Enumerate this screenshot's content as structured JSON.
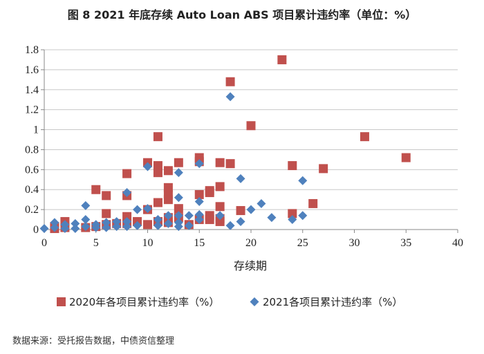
{
  "source_note": "数据来源：受托报告数据，中债资信整理",
  "colors": {
    "series_2020": "#c0504d",
    "series_2021": "#4f81bd",
    "grid": "#c8c8c8",
    "axis": "#888888"
  },
  "chart_data": {
    "type": "scatter",
    "title": "图 8  2021 年底存续 Auto Loan ABS 项目累计违约率（单位：%）",
    "xlabel": "存续期",
    "ylabel": "",
    "xlim": [
      0,
      40
    ],
    "ylim": [
      0,
      1.8
    ],
    "xticks": [
      "0",
      "5",
      "10",
      "15",
      "20",
      "25",
      "30",
      "35",
      "40"
    ],
    "yticks": [
      "0",
      "0.2",
      "0.4",
      "0.6",
      "0.8",
      "1",
      "1.2",
      "1.4",
      "1.6",
      "1.8"
    ],
    "grid": "horizontal",
    "legend_position": "bottom",
    "series": [
      {
        "name": "2020年各项目累计违约率（%）",
        "marker": "square",
        "points": [
          [
            1,
            0.01
          ],
          [
            1,
            0.03
          ],
          [
            2,
            0.08
          ],
          [
            2,
            0.02
          ],
          [
            4,
            0.02
          ],
          [
            5,
            0.4
          ],
          [
            5,
            0.03
          ],
          [
            6,
            0.34
          ],
          [
            6,
            0.16
          ],
          [
            6,
            0.05
          ],
          [
            7,
            0.06
          ],
          [
            8,
            0.56
          ],
          [
            8,
            0.34
          ],
          [
            8,
            0.13
          ],
          [
            8,
            0.06
          ],
          [
            9,
            0.08
          ],
          [
            10,
            0.67
          ],
          [
            10,
            0.2
          ],
          [
            10,
            0.05
          ],
          [
            11,
            0.93
          ],
          [
            11,
            0.64
          ],
          [
            11,
            0.57
          ],
          [
            11,
            0.27
          ],
          [
            11,
            0.08
          ],
          [
            12,
            0.59
          ],
          [
            12,
            0.42
          ],
          [
            12,
            0.35
          ],
          [
            12,
            0.3
          ],
          [
            12,
            0.12
          ],
          [
            12,
            0.07
          ],
          [
            13,
            0.67
          ],
          [
            13,
            0.21
          ],
          [
            13,
            0.12
          ],
          [
            14,
            0.05
          ],
          [
            15,
            0.72
          ],
          [
            15,
            0.68
          ],
          [
            15,
            0.35
          ],
          [
            15,
            0.1
          ],
          [
            16,
            0.39
          ],
          [
            16,
            0.37
          ],
          [
            16,
            0.14
          ],
          [
            16,
            0.1
          ],
          [
            17,
            0.67
          ],
          [
            17,
            0.43
          ],
          [
            17,
            0.23
          ],
          [
            17,
            0.11
          ],
          [
            17,
            0.08
          ],
          [
            18,
            1.48
          ],
          [
            18,
            0.66
          ],
          [
            19,
            0.19
          ],
          [
            20,
            1.04
          ],
          [
            23,
            1.7
          ],
          [
            24,
            0.64
          ],
          [
            24,
            0.16
          ],
          [
            26,
            0.26
          ],
          [
            27,
            0.61
          ],
          [
            31,
            0.93
          ],
          [
            35,
            0.72
          ]
        ]
      },
      {
        "name": "2021各项目累计违约率（%）",
        "marker": "diamond",
        "points": [
          [
            0,
            0.01
          ],
          [
            1,
            0.07
          ],
          [
            1,
            0.02
          ],
          [
            2,
            0.05
          ],
          [
            2,
            0.01
          ],
          [
            3,
            0.06
          ],
          [
            3,
            0.01
          ],
          [
            4,
            0.24
          ],
          [
            4,
            0.1
          ],
          [
            4,
            0.03
          ],
          [
            5,
            0.05
          ],
          [
            5,
            0.02
          ],
          [
            6,
            0.07
          ],
          [
            6,
            0.02
          ],
          [
            7,
            0.08
          ],
          [
            7,
            0.03
          ],
          [
            8,
            0.37
          ],
          [
            8,
            0.08
          ],
          [
            8,
            0.03
          ],
          [
            9,
            0.2
          ],
          [
            9,
            0.04
          ],
          [
            10,
            0.63
          ],
          [
            10,
            0.21
          ],
          [
            11,
            0.1
          ],
          [
            11,
            0.04
          ],
          [
            12,
            0.14
          ],
          [
            12,
            0.06
          ],
          [
            13,
            0.57
          ],
          [
            13,
            0.32
          ],
          [
            13,
            0.14
          ],
          [
            13,
            0.07
          ],
          [
            13,
            0.03
          ],
          [
            14,
            0.14
          ],
          [
            14,
            0.04
          ],
          [
            15,
            0.66
          ],
          [
            15,
            0.28
          ],
          [
            15,
            0.15
          ],
          [
            15,
            0.1
          ],
          [
            17,
            0.14
          ],
          [
            18,
            1.33
          ],
          [
            18,
            0.04
          ],
          [
            19,
            0.51
          ],
          [
            19,
            0.08
          ],
          [
            20,
            0.2
          ],
          [
            21,
            0.26
          ],
          [
            22,
            0.12
          ],
          [
            24,
            0.1
          ],
          [
            25,
            0.49
          ],
          [
            25,
            0.14
          ]
        ]
      }
    ]
  }
}
